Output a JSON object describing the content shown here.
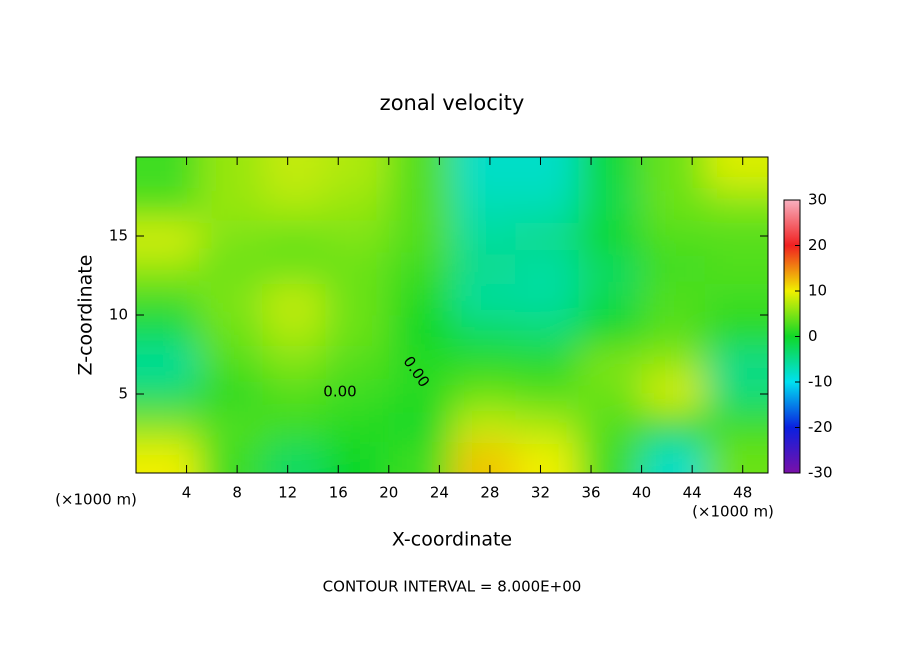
{
  "chart_data": {
    "type": "heatmap",
    "title": "zonal velocity",
    "x_label": "X-coordinate",
    "y_label": "Z-coordinate",
    "x_unit_left": "(×1000 m)",
    "x_unit_right": "(×1000 m)",
    "footnote": "CONTOUR INTERVAL = 8.000E+00",
    "annotations": [
      "0.00",
      "0.00"
    ],
    "xlim": [
      0,
      50
    ],
    "ylim": [
      0,
      20
    ],
    "xticks": [
      4,
      8,
      12,
      16,
      20,
      24,
      28,
      32,
      36,
      40,
      44,
      48
    ],
    "yticks": [
      5,
      10,
      15
    ],
    "x": [
      2.5,
      7.5,
      12.5,
      17.5,
      22.5,
      27.5,
      32.5,
      37.5,
      42.5,
      47.5
    ],
    "y": [
      1,
      3,
      5,
      7,
      9,
      11,
      13,
      15,
      17,
      19
    ],
    "z": [
      [
        10,
        2,
        -3,
        0,
        2,
        12,
        10,
        2,
        -8,
        4
      ],
      [
        5,
        3,
        2,
        1,
        0,
        8,
        7,
        3,
        1,
        2
      ],
      [
        -3,
        1,
        3,
        2,
        1,
        4,
        3,
        4,
        9,
        -4
      ],
      [
        -6,
        3,
        5,
        3,
        1,
        1,
        1,
        5,
        6,
        -5
      ],
      [
        -2,
        4,
        7,
        4,
        0,
        -3,
        -4,
        0,
        3,
        1
      ],
      [
        2,
        5,
        8,
        4,
        1,
        -6,
        -6,
        -2,
        3,
        2
      ],
      [
        6,
        4,
        4,
        4,
        2,
        -5,
        -6,
        -3,
        2,
        3
      ],
      [
        9,
        5,
        4,
        5,
        3,
        -6,
        -5,
        0,
        3,
        3
      ],
      [
        3,
        6,
        7,
        6,
        3,
        -7,
        -7,
        -2,
        4,
        5
      ],
      [
        2,
        6,
        8,
        7,
        3,
        -8,
        -8,
        -1,
        4,
        9
      ]
    ],
    "clim": [
      -30,
      30
    ],
    "colorbar_ticks": [
      30,
      20,
      10,
      0,
      -10,
      -20,
      -30
    ],
    "colorscale": [
      [
        -30,
        "#7a10a8"
      ],
      [
        -20,
        "#0a20e0"
      ],
      [
        -10,
        "#00e0f0"
      ],
      [
        0,
        "#10d828"
      ],
      [
        10,
        "#f0f000"
      ],
      [
        20,
        "#f02020"
      ],
      [
        30,
        "#f8b0c0"
      ]
    ]
  }
}
